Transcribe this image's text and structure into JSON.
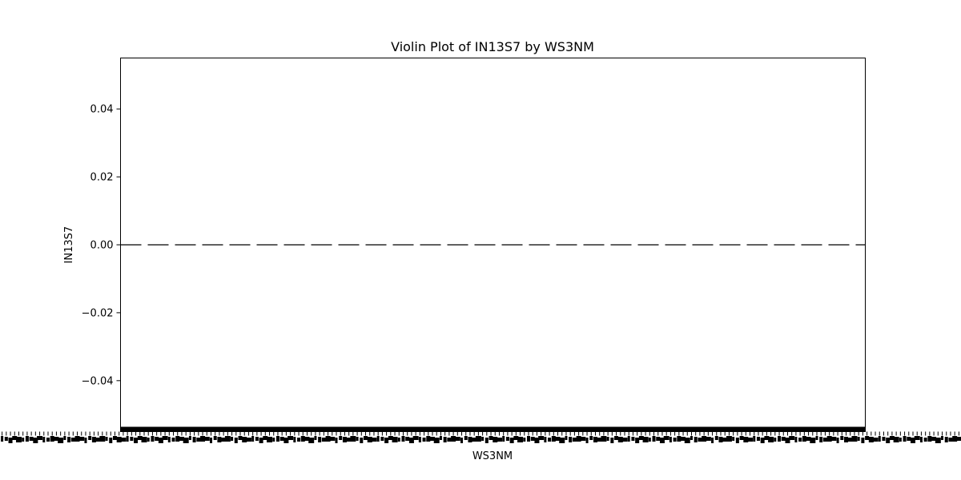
{
  "chart_data": {
    "type": "violin",
    "title": "Violin Plot of IN13S7 by WS3NM",
    "xlabel": "WS3NM",
    "ylabel": "IN13S7",
    "ylim": [
      -0.055,
      0.055
    ],
    "yticks": [
      0.04,
      0.02,
      0.0,
      -0.02,
      -0.04
    ],
    "ytick_labels": [
      "0.04",
      "0.02",
      "0.00",
      "−0.02",
      "−0.04"
    ],
    "reference_line": {
      "y": 0.0,
      "style": "dashed",
      "color": "#000000"
    },
    "category_count_estimate": 230,
    "category_labels_legible": false,
    "grid": false,
    "legend": "none"
  }
}
